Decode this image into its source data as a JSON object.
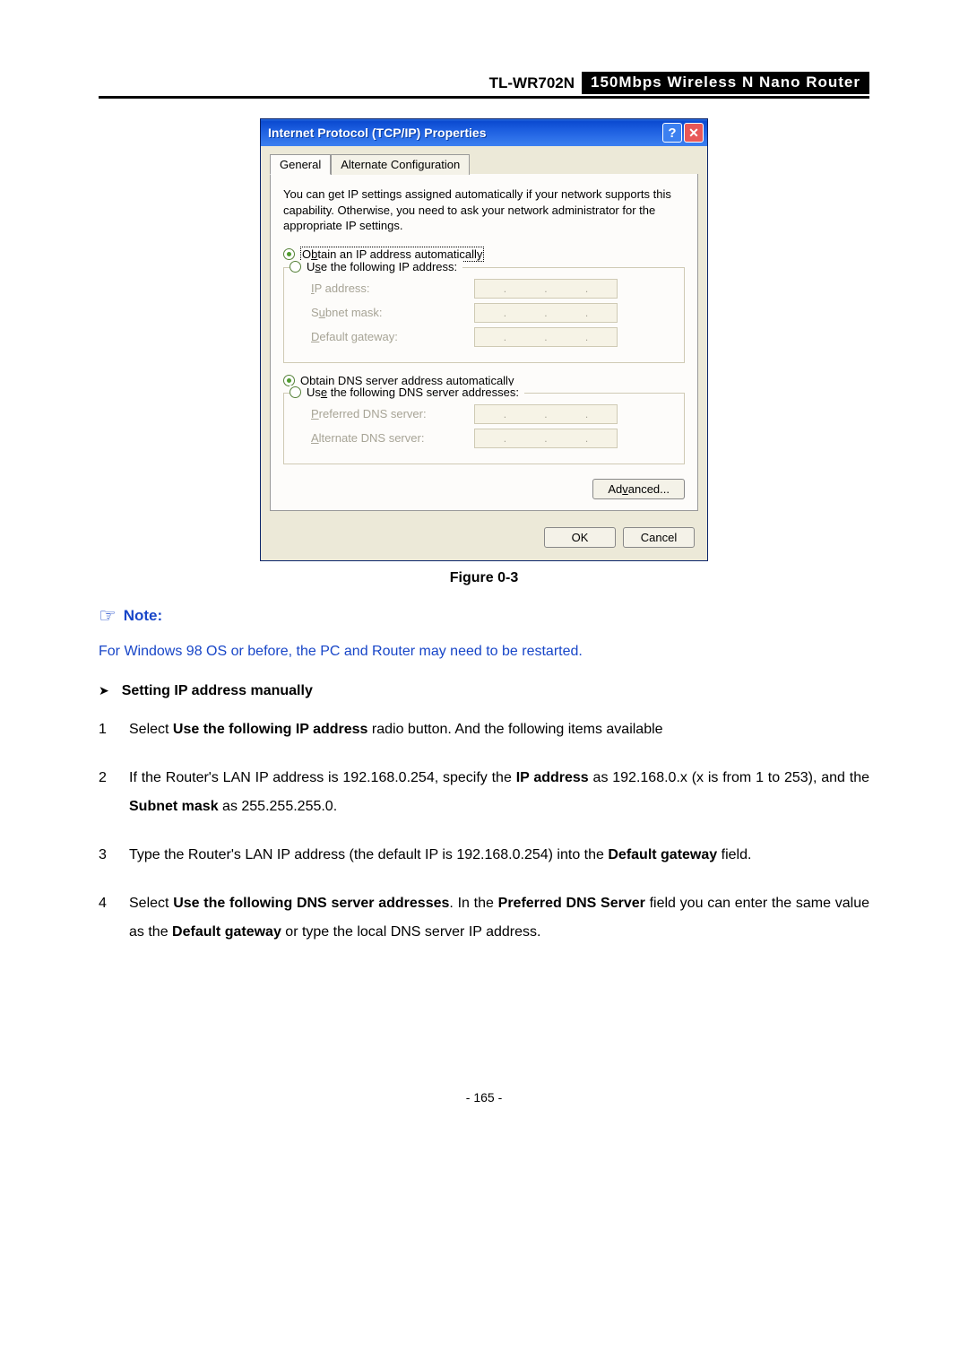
{
  "header": {
    "model": "TL-WR702N",
    "description": "150Mbps  Wireless  N  Nano  Router"
  },
  "dialog": {
    "title": "Internet Protocol (TCP/IP) Properties",
    "help_symbol": "?",
    "close_symbol": "✕",
    "tabs": {
      "general": "General",
      "alternate": "Alternate Configuration"
    },
    "description": "You can get IP settings assigned automatically if your network supports this capability. Otherwise, you need to ask your network administrator for the appropriate IP settings.",
    "ip": {
      "auto": {
        "pre": "O",
        "u": "b",
        "post": "tain an IP address automatically"
      },
      "manual": {
        "pre": "U",
        "u": "s",
        "post": "e the following IP address:"
      },
      "fields": {
        "ip_address": {
          "u": "I",
          "post": "P address:"
        },
        "subnet": {
          "pre": "S",
          "u": "u",
          "post": "bnet mask:"
        },
        "gateway": {
          "u": "D",
          "post": "efault gateway:"
        }
      }
    },
    "dns": {
      "auto": {
        "pre": "O",
        "u": "b",
        "post": "tain DNS server address automatically"
      },
      "manual": {
        "pre": "Us",
        "u": "e",
        "post": " the following DNS server addresses:"
      },
      "fields": {
        "preferred": {
          "u": "P",
          "post": "referred DNS server:"
        },
        "alternate": {
          "u": "A",
          "post": "lternate DNS server:"
        }
      }
    },
    "buttons": {
      "advanced": {
        "pre": "Ad",
        "u": "v",
        "post": "anced..."
      },
      "ok": "OK",
      "cancel": "Cancel"
    }
  },
  "figure_caption": "Figure 0-3",
  "note": {
    "label": "Note:",
    "text": "For Windows 98 OS or before, the PC and Router may need to be restarted."
  },
  "subheading": "Setting IP address manually",
  "steps": {
    "s1_a": "Select ",
    "s1_b": "Use the following IP address",
    "s1_c": " radio button. And the following items available",
    "s2_a": "If the Router's LAN IP address is 192.168.0.254, specify the ",
    "s2_b": "IP address",
    "s2_c": " as 192.168.0.x (x is from 1 to 253), and the ",
    "s2_d": "Subnet mask",
    "s2_e": " as 255.255.255.0.",
    "s3_a": "Type the Router's LAN IP address (the default IP is 192.168.0.254) into the ",
    "s3_b": "Default gateway",
    "s3_c": " field.",
    "s4_a": "Select ",
    "s4_b": "Use the following DNS server addresses",
    "s4_c": ". In the ",
    "s4_d": "Preferred DNS Server",
    "s4_e": " field you can enter the same value as the ",
    "s4_f": "Default gateway",
    "s4_g": " or type the local DNS server IP address."
  },
  "page_number": "- 165 -"
}
